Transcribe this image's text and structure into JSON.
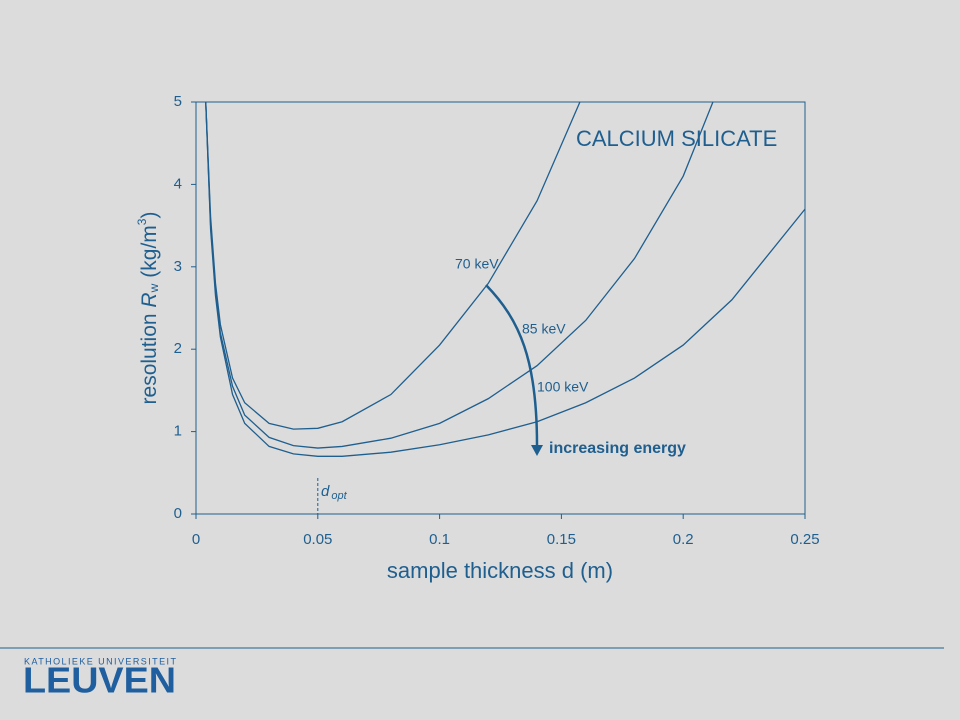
{
  "chart_data": {
    "type": "line",
    "title": "CALCIUM SILICATE",
    "xlabel": "sample thickness d (m)",
    "ylabel": {
      "text": "resolution",
      "symbol": "R",
      "subscript": "w",
      "unit": "(kg/m",
      "superscript": "3",
      "close": ")"
    },
    "xlim": [
      0,
      0.25
    ],
    "xticks": [
      0,
      0.05,
      0.1,
      0.15,
      0.2,
      0.25
    ],
    "ylim": [
      0,
      5
    ],
    "yticks": [
      0,
      1,
      2,
      3,
      4,
      5
    ],
    "color": "#1f5f8f",
    "series": [
      {
        "name": "70 keV",
        "color": "#1f5f8f",
        "x": [
          0.004,
          0.006,
          0.008,
          0.01,
          0.015,
          0.02,
          0.03,
          0.04,
          0.05,
          0.06,
          0.08,
          0.1,
          0.12,
          0.14,
          0.1576
        ],
        "values": [
          5,
          3.6,
          2.8,
          2.3,
          1.65,
          1.35,
          1.1,
          1.03,
          1.04,
          1.12,
          1.45,
          2.05,
          2.8,
          3.8,
          5
        ]
      },
      {
        "name": "85 keV",
        "color": "#1f5f8f",
        "x": [
          0.004,
          0.006,
          0.008,
          0.01,
          0.015,
          0.02,
          0.03,
          0.04,
          0.05,
          0.06,
          0.08,
          0.1,
          0.12,
          0.14,
          0.16,
          0.18,
          0.2,
          0.2122
        ],
        "values": [
          5,
          3.5,
          2.7,
          2.2,
          1.55,
          1.2,
          0.93,
          0.83,
          0.8,
          0.82,
          0.92,
          1.1,
          1.4,
          1.8,
          2.35,
          3.1,
          4.1,
          5
        ]
      },
      {
        "name": "100 keV",
        "color": "#1f5f8f",
        "x": [
          0.004,
          0.006,
          0.008,
          0.01,
          0.015,
          0.02,
          0.03,
          0.04,
          0.05,
          0.06,
          0.08,
          0.1,
          0.12,
          0.14,
          0.16,
          0.18,
          0.2,
          0.22,
          0.25
        ],
        "values": [
          5,
          3.45,
          2.65,
          2.15,
          1.45,
          1.1,
          0.82,
          0.73,
          0.7,
          0.7,
          0.75,
          0.84,
          0.96,
          1.12,
          1.35,
          1.65,
          2.05,
          2.6,
          3.7
        ]
      }
    ],
    "annotation": "increasing energy",
    "d_opt": {
      "x": 0.05,
      "label": "d",
      "subscript": "opt"
    }
  },
  "logo": {
    "line1": "KATHOLIEKE UNIVERSITEIT",
    "line2": "LEUVEN"
  }
}
